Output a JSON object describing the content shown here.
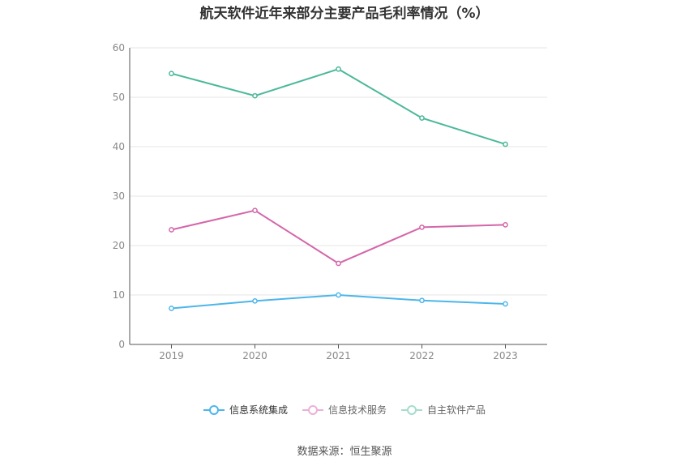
{
  "chart_data": {
    "type": "line",
    "title": "航天软件近年来部分主要产品毛利率情况（%）",
    "categories": [
      "2019",
      "2020",
      "2021",
      "2022",
      "2023"
    ],
    "ylim": [
      0,
      60
    ],
    "yticks": [
      "0",
      "10",
      "20",
      "30",
      "40",
      "50",
      "60"
    ],
    "grid": true,
    "legend_position": "bottom",
    "series": [
      {
        "name": "信息系统集成",
        "color": "#4db6ea",
        "values": [
          7.3,
          8.8,
          10.0,
          8.9,
          8.2
        ]
      },
      {
        "name": "信息技术服务",
        "color": "#d466aa",
        "values": [
          23.2,
          27.1,
          16.4,
          23.7,
          24.2
        ]
      },
      {
        "name": "自主软件产品",
        "color": "#4cb89a",
        "values": [
          54.8,
          50.3,
          55.7,
          45.8,
          40.5
        ]
      }
    ]
  },
  "source": "数据来源：恒生聚源"
}
